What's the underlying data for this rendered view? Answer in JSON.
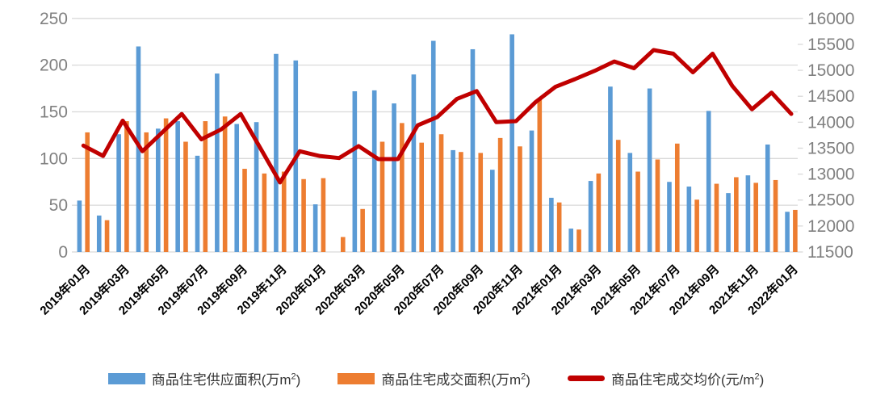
{
  "chart_data": {
    "type": "combo",
    "title": "",
    "grid": true,
    "legend_position": "bottom",
    "gridline_color": "#D9D9D9",
    "axis_label_color": "#808080",
    "x_label_color": "#000000",
    "categories": [
      "2019年01月",
      "2019年02月",
      "2019年03月",
      "2019年04月",
      "2019年05月",
      "2019年06月",
      "2019年07月",
      "2019年08月",
      "2019年09月",
      "2019年10月",
      "2019年11月",
      "2019年12月",
      "2020年01月",
      "2020年02月",
      "2020年03月",
      "2020年04月",
      "2020年05月",
      "2020年06月",
      "2020年07月",
      "2020年08月",
      "2020年09月",
      "2020年10月",
      "2020年11月",
      "2020年12月",
      "2021年01月",
      "2021年02月",
      "2021年03月",
      "2021年04月",
      "2021年05月",
      "2021年06月",
      "2021年07月",
      "2021年08月",
      "2021年09月",
      "2021年10月",
      "2021年11月",
      "2021年12月",
      "2022年01月"
    ],
    "x_tick_labels": [
      "2019年01月",
      "2019年03月",
      "2019年05月",
      "2019年07月",
      "2019年09月",
      "2019年11月",
      "2020年01月",
      "2020年03月",
      "2020年05月",
      "2020年07月",
      "2020年09月",
      "2020年11月",
      "2021年01月",
      "2021年03月",
      "2021年05月",
      "2021年07月",
      "2021年09月",
      "2021年11月",
      "2022年01月"
    ],
    "series": [
      {
        "name": "商品住宅供应面积(万m²)",
        "type": "bar",
        "axis": "left",
        "color": "#5B9BD5",
        "values": [
          55,
          39,
          126,
          220,
          132,
          140,
          103,
          191,
          137,
          139,
          212,
          205,
          51,
          0,
          172,
          173,
          159,
          190,
          226,
          109,
          217,
          88,
          233,
          130,
          58,
          25,
          76,
          177,
          106,
          175,
          75,
          70,
          151,
          63,
          82,
          115,
          43
        ]
      },
      {
        "name": "商品住宅成交面积(万m²)",
        "type": "bar",
        "axis": "left",
        "color": "#ED7D31",
        "values": [
          128,
          34,
          140,
          128,
          143,
          118,
          140,
          145,
          89,
          84,
          86,
          78,
          79,
          16,
          46,
          118,
          138,
          117,
          126,
          107,
          106,
          122,
          113,
          164,
          53,
          24,
          84,
          120,
          86,
          99,
          116,
          56,
          73,
          80,
          74,
          77,
          45
        ]
      },
      {
        "name": "商品住宅成交均价(元/m²)",
        "type": "line",
        "axis": "right",
        "color": "#C00000",
        "values": [
          13550,
          13350,
          14030,
          13440,
          13800,
          14160,
          13670,
          13860,
          14160,
          13500,
          12840,
          13440,
          13350,
          13310,
          13540,
          13290,
          13290,
          13940,
          14100,
          14450,
          14600,
          14000,
          14020,
          14390,
          14680,
          14830,
          14990,
          15170,
          15040,
          15390,
          15320,
          14960,
          15320,
          14700,
          14250,
          14570,
          14160
        ]
      }
    ],
    "left_axis": {
      "min": 0,
      "max": 250,
      "step": 50,
      "tick_labels": [
        "0",
        "50",
        "100",
        "150",
        "200",
        "250"
      ]
    },
    "right_axis": {
      "min": 11500,
      "max": 16000,
      "step": 500,
      "tick_labels": [
        "11500",
        "12000",
        "12500",
        "13000",
        "13500",
        "14000",
        "14500",
        "15000",
        "15500",
        "16000"
      ]
    }
  },
  "legend": {
    "items": [
      {
        "label": "商品住宅供应面积(万m",
        "sup": "2",
        "suffix": ")",
        "color": "#5B9BD5",
        "marker": "bar"
      },
      {
        "label": "商品住宅成交面积(万m",
        "sup": "2",
        "suffix": ")",
        "color": "#ED7D31",
        "marker": "bar"
      },
      {
        "label": "商品住宅成交均价(元/m",
        "sup": "2",
        "suffix": ")",
        "color": "#C00000",
        "marker": "line"
      }
    ]
  }
}
